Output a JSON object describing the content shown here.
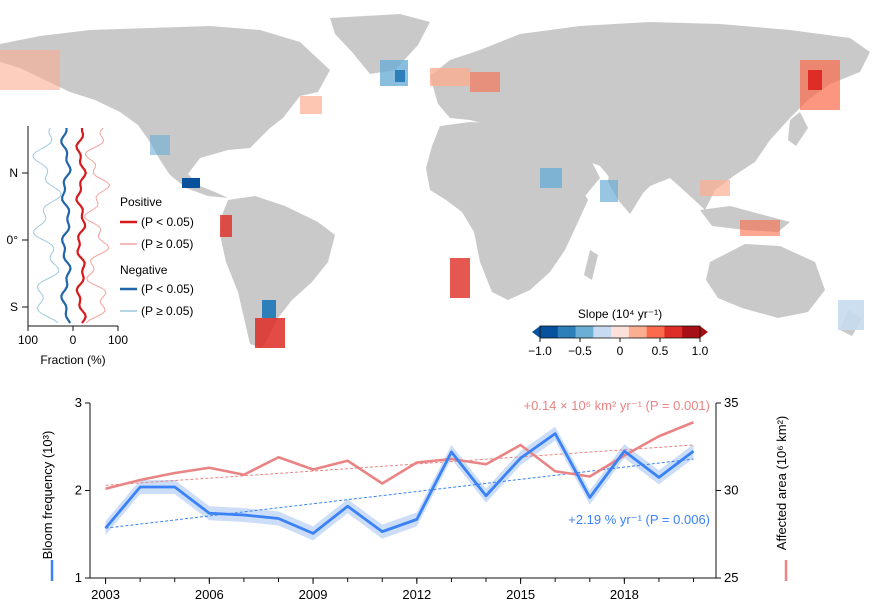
{
  "map": {
    "colorbar": {
      "title": "Slope (10⁴ yr⁻¹)",
      "ticks": [
        "−1.0",
        "−0.5",
        "0",
        "0.5",
        "1.0"
      ],
      "colors": [
        "#08519c",
        "#2c7fb8",
        "#6baed6",
        "#c6dbef",
        "#fde0d9",
        "#fcae91",
        "#fb6a4a",
        "#de2d26",
        "#a50f15"
      ]
    }
  },
  "lat_profile": {
    "y_ticks": [
      "N",
      "0°",
      "S"
    ],
    "x_ticks": [
      "100",
      "0",
      "100"
    ],
    "xlabel": "Fraction (%)",
    "legend": {
      "positive_title": "Positive",
      "positive_sig": "(P < 0.05)",
      "positive_nonsig": "(P ≥ 0.05)",
      "negative_title": "Negative",
      "negative_sig": "(P < 0.05)",
      "negative_nonsig": "(P ≥ 0.05)"
    },
    "colors": {
      "pos_sig": "#d7191c",
      "pos_nonsig": "#f4a3a0",
      "neg_sig": "#2166ac",
      "neg_nonsig": "#9ecae1"
    }
  },
  "chart_data": {
    "type": "line",
    "x": [
      2003,
      2004,
      2005,
      2006,
      2007,
      2008,
      2009,
      2010,
      2011,
      2012,
      2013,
      2014,
      2015,
      2016,
      2017,
      2018,
      2019,
      2020
    ],
    "xlim": [
      2002.55,
      2020.65
    ],
    "xticks": [
      2003,
      2006,
      2009,
      2012,
      2015,
      2018
    ],
    "series": [
      {
        "axis": "left",
        "color": "#3b82f6",
        "band_color": "#bfd4f5",
        "values": [
          1.57,
          2.04,
          2.04,
          1.74,
          1.72,
          1.68,
          1.51,
          1.82,
          1.53,
          1.67,
          2.44,
          1.94,
          2.37,
          2.65,
          1.92,
          2.45,
          2.15,
          2.45
        ],
        "trend": [
          1.57,
          2.36
        ],
        "trend_label": "+2.19 % yr⁻¹ (P = 0.006)"
      },
      {
        "axis": "right",
        "color": "#e98484",
        "values": [
          30.1,
          30.6,
          31.0,
          31.3,
          30.9,
          31.9,
          31.2,
          31.7,
          30.4,
          31.6,
          31.8,
          31.5,
          32.6,
          31.1,
          30.8,
          32.0,
          33.1,
          33.9
        ],
        "trend": [
          30.3,
          32.6
        ],
        "trend_label": "+0.14 × 10⁶ km² yr⁻¹ (P = 0.001)"
      }
    ],
    "left_axis": {
      "label": "Bloom frequency (10³)",
      "ylim": [
        1,
        3
      ],
      "ticks": [
        "1",
        "2",
        "3"
      ],
      "color": "#3b82f6"
    },
    "right_axis": {
      "label": "Affected area (10⁶ km²)",
      "ylim": [
        25,
        35
      ],
      "ticks": [
        "25",
        "30",
        "35"
      ],
      "color": "#e98484"
    }
  }
}
